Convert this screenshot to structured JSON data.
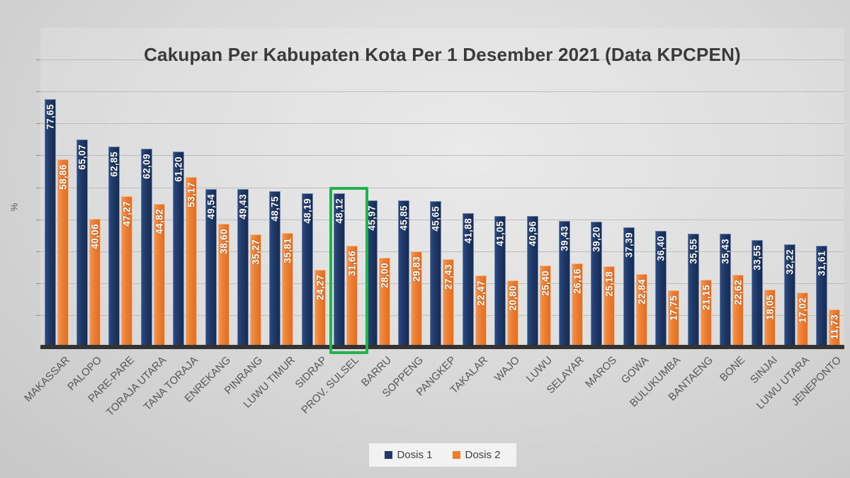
{
  "title": "Cakupan Per Kabupaten Kota Per 1 Desember 2021 (Data KPCPEN)",
  "y_axis": {
    "label": "%"
  },
  "legend": {
    "items": [
      {
        "label": "Dosis 1",
        "color": "#1f3864"
      },
      {
        "label": "Dosis 2",
        "color": "#ed7d31"
      }
    ]
  },
  "highlight": {
    "category": "PROV. SULSEL",
    "color": "#23b14d"
  },
  "colors": {
    "dosis1": "#1f3864",
    "dosis2": "#ed7d31",
    "highlight": "#23b14d",
    "background": "#d9d9d9",
    "axis": "#333333",
    "gridline": "#bdbdbd"
  },
  "chart_data": {
    "type": "bar",
    "title": "Cakupan Per Kabupaten Kota Per 1 Desember 2021 (Data KPCPEN)",
    "xlabel": "",
    "ylabel": "%",
    "ylim": [
      0,
      100
    ],
    "gridline_step": 10,
    "grid": true,
    "legend_position": "bottom-center",
    "categories": [
      "MAKASSAR",
      "PALOPO",
      "PARE-PARE",
      "TORAJA UTARA",
      "TANA TORAJA",
      "ENREKANG",
      "PINRANG",
      "LUWU TIMUR",
      "SIDRAP",
      "PROV. SULSEL",
      "BARRU",
      "SOPPENG",
      "PANGKEP",
      "TAKALAR",
      "WAJO",
      "LUWU",
      "SELAYAR",
      "MAROS",
      "GOWA",
      "BULUKUMBA",
      "BANTAENG",
      "BONE",
      "SINJAI",
      "LUWU UTARA",
      "JENEPONTO"
    ],
    "series": [
      {
        "name": "Dosis 1",
        "color": "#1f3864",
        "values": [
          77.65,
          65.07,
          62.85,
          62.09,
          61.2,
          49.54,
          49.43,
          48.75,
          48.19,
          48.12,
          45.97,
          45.85,
          45.65,
          41.88,
          41.05,
          40.96,
          39.43,
          39.2,
          37.39,
          36.4,
          35.55,
          35.43,
          33.55,
          32.22,
          31.61
        ],
        "value_labels": [
          "77,65",
          "65,07",
          "62,85",
          "62,09",
          "61,20",
          "49,54",
          "49,43",
          "48,75",
          "48,19",
          "48,12",
          "45,97",
          "45,85",
          "45,65",
          "41,88",
          "41,05",
          "40,96",
          "39,43",
          "39,20",
          "37,39",
          "36,40",
          "35,55",
          "35,43",
          "33,55",
          "32,22",
          "31,61"
        ]
      },
      {
        "name": "Dosis 2",
        "color": "#ed7d31",
        "values": [
          58.86,
          40.06,
          47.27,
          44.82,
          53.17,
          38.6,
          35.27,
          35.81,
          24.27,
          31.66,
          28.0,
          29.83,
          27.43,
          22.47,
          20.8,
          25.4,
          26.16,
          25.18,
          22.84,
          17.75,
          21.15,
          22.62,
          18.05,
          17.02,
          11.73
        ],
        "value_labels": [
          "58,86",
          "40,06",
          "47,27",
          "44,82",
          "53,17",
          "38,60",
          "35,27",
          "35,81",
          "24,27",
          "31,66",
          "28,00",
          "29,83",
          "27,43",
          "22,47",
          "20,80",
          "25,40",
          "26,16",
          "25,18",
          "22,84",
          "17,75",
          "21,15",
          "22,62",
          "18,05",
          "17,02",
          "11,73"
        ]
      }
    ],
    "highlighted_category_index": 9
  }
}
